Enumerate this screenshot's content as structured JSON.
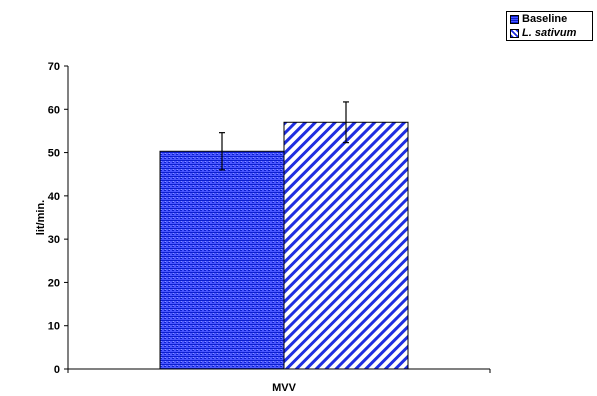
{
  "chart_data": {
    "type": "bar",
    "categories": [
      "MVV"
    ],
    "series": [
      {
        "name": "Baseline",
        "values": [
          50.3
        ],
        "error": [
          4.3
        ],
        "color": "#1f2ee0",
        "pattern": "horizontal-dotted",
        "italic": false
      },
      {
        "name": "L. sativum",
        "values": [
          57.0
        ],
        "error": [
          4.7
        ],
        "color": "#1f2ee0",
        "pattern": "diagonal",
        "italic": true
      }
    ],
    "ylabel": "lit/min.",
    "xlabel": "",
    "ylim": [
      0,
      70
    ],
    "yticks": [
      "0",
      "10",
      "20",
      "30",
      "40",
      "50",
      "60",
      "70"
    ],
    "grid": false,
    "legend_position": "top-right"
  }
}
